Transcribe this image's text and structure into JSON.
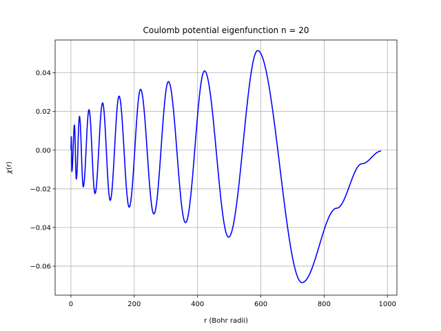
{
  "chart_data": {
    "type": "line",
    "title": "Coulomb potential eigenfunction n = 20",
    "xlabel": "r  (Bohr radii)",
    "ylabel_symbol": "χ",
    "ylabel_arg": "(r)",
    "xlim": [
      -50,
      1030
    ],
    "ylim": [
      -0.075,
      0.057
    ],
    "xticks": [
      0,
      200,
      400,
      600,
      800,
      1000
    ],
    "xtick_labels": [
      "0",
      "200",
      "400",
      "600",
      "800",
      "1000"
    ],
    "yticks": [
      -0.06,
      -0.04,
      -0.02,
      0.0,
      0.02,
      0.04
    ],
    "ytick_labels": [
      "−0.06",
      "−0.04",
      "−0.02",
      "0.00",
      "0.02",
      "0.04"
    ],
    "grid": true,
    "series": [
      {
        "color": "#0000ff",
        "extrema": [
          [
            0,
            0.0
          ],
          [
            1,
            0.007
          ],
          [
            3,
            -0.011
          ],
          [
            11,
            0.013
          ],
          [
            17,
            -0.015
          ],
          [
            27,
            0.0175
          ],
          [
            39,
            -0.019
          ],
          [
            57,
            0.021
          ],
          [
            76,
            -0.0225
          ],
          [
            100,
            0.0245
          ],
          [
            124,
            -0.026
          ],
          [
            152,
            0.028
          ],
          [
            184,
            -0.0295
          ],
          [
            220,
            0.0315
          ],
          [
            262,
            -0.033
          ],
          [
            308,
            0.0355
          ],
          [
            362,
            -0.0375
          ],
          [
            422,
            0.041
          ],
          [
            498,
            -0.045
          ],
          [
            590,
            0.0515
          ],
          [
            730,
            -0.0685
          ],
          [
            840,
            -0.03
          ],
          [
            920,
            -0.007
          ],
          [
            980,
            -0.0005
          ]
        ]
      }
    ]
  }
}
